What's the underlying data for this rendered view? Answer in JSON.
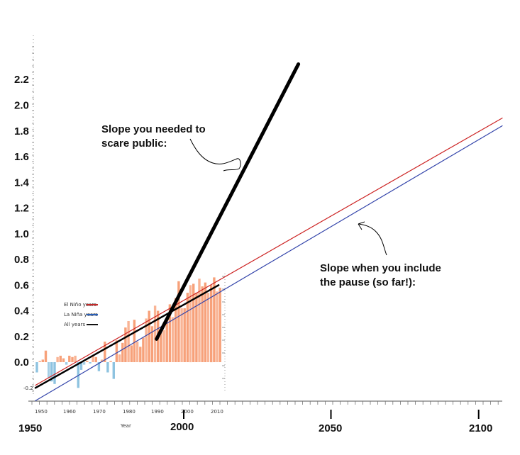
{
  "chart_data": {
    "type": "bar",
    "title": "",
    "xlabel": "",
    "ylabel": "",
    "xlim": [
      1950,
      2108
    ],
    "ylim": [
      -0.3,
      2.6
    ],
    "y_ticks": [
      0.0,
      0.2,
      0.4,
      0.6,
      0.8,
      1.0,
      1.2,
      1.4,
      1.6,
      1.8,
      2.0,
      2.2
    ],
    "y_tick_labels": [
      "0.0",
      "0.2",
      "0.4",
      "0.6",
      "0.8",
      "1.0",
      "1.2",
      "1.4",
      "1.6",
      "1.8",
      "2.0",
      "2.2"
    ],
    "x_major_ticks": [
      2050,
      2100
    ],
    "x_labels": [
      "1950",
      "2000",
      "2050",
      "2100"
    ],
    "inset": {
      "x_tick_labels": [
        "1950",
        "1960",
        "1970",
        "1980",
        "1990",
        "2000",
        "2010"
      ],
      "y_tick_labels": [
        "-0.2"
      ],
      "xlabel": "Year",
      "bar_years": [
        1950,
        1951,
        1952,
        1953,
        1954,
        1955,
        1956,
        1957,
        1958,
        1959,
        1960,
        1961,
        1962,
        1963,
        1964,
        1965,
        1966,
        1967,
        1968,
        1969,
        1970,
        1971,
        1972,
        1973,
        1974,
        1975,
        1976,
        1977,
        1978,
        1979,
        1980,
        1981,
        1982,
        1983,
        1984,
        1985,
        1986,
        1987,
        1988,
        1989,
        1990,
        1991,
        1992,
        1993,
        1994,
        1995,
        1996,
        1997,
        1998,
        1999,
        2000,
        2001,
        2002,
        2003,
        2004,
        2005,
        2006,
        2007,
        2008,
        2009,
        2010,
        2011,
        2012
      ],
      "bar_values": [
        -0.08,
        0.01,
        0.02,
        0.09,
        -0.12,
        -0.15,
        -0.17,
        0.04,
        0.05,
        0.03,
        -0.02,
        0.05,
        0.04,
        0.05,
        -0.2,
        -0.06,
        -0.02,
        0.01,
        -0.01,
        0.05,
        0.04,
        -0.07,
        0.02,
        0.16,
        -0.08,
        0.01,
        -0.13,
        0.17,
        0.06,
        0.15,
        0.27,
        0.32,
        0.13,
        0.33,
        0.16,
        0.12,
        0.19,
        0.34,
        0.4,
        0.28,
        0.44,
        0.4,
        0.23,
        0.25,
        0.32,
        0.45,
        0.35,
        0.5,
        0.63,
        0.42,
        0.42,
        0.54,
        0.6,
        0.61,
        0.54,
        0.65,
        0.59,
        0.62,
        0.54,
        0.6,
        0.66,
        0.55,
        0.58
      ],
      "bar_colors": [
        "#f7a17a",
        "#8ec3e0"
      ],
      "legend": [
        {
          "label": "El Niño years",
          "color": "#c42a2a"
        },
        {
          "label": "La Niña years",
          "color": "#2b60b8"
        },
        {
          "label": "All years",
          "color": "#111111"
        }
      ]
    },
    "series": [
      {
        "name": "El Niño years",
        "color": "#cc2222",
        "x": [
          1950,
          2108
        ],
        "values": [
          -0.18,
          1.9
        ]
      },
      {
        "name": "La Niña years",
        "color": "#3344aa",
        "x": [
          1950,
          2108
        ],
        "values": [
          -0.3,
          1.84
        ]
      },
      {
        "name": "All years",
        "color": "#000000",
        "x": [
          1950,
          2012
        ],
        "values": [
          -0.2,
          0.6
        ]
      },
      {
        "name": "",
        "color": "#000000",
        "x": [
          1991,
          2039
        ],
        "values": [
          0.18,
          2.32
        ]
      }
    ],
    "annotations": [
      {
        "text_lines": [
          "Slope you needed to",
          "scare public:"
        ]
      },
      {
        "text_lines": [
          "Slope when you include",
          "the pause (so far!):"
        ]
      }
    ],
    "grid": false,
    "legend_position": "left"
  }
}
